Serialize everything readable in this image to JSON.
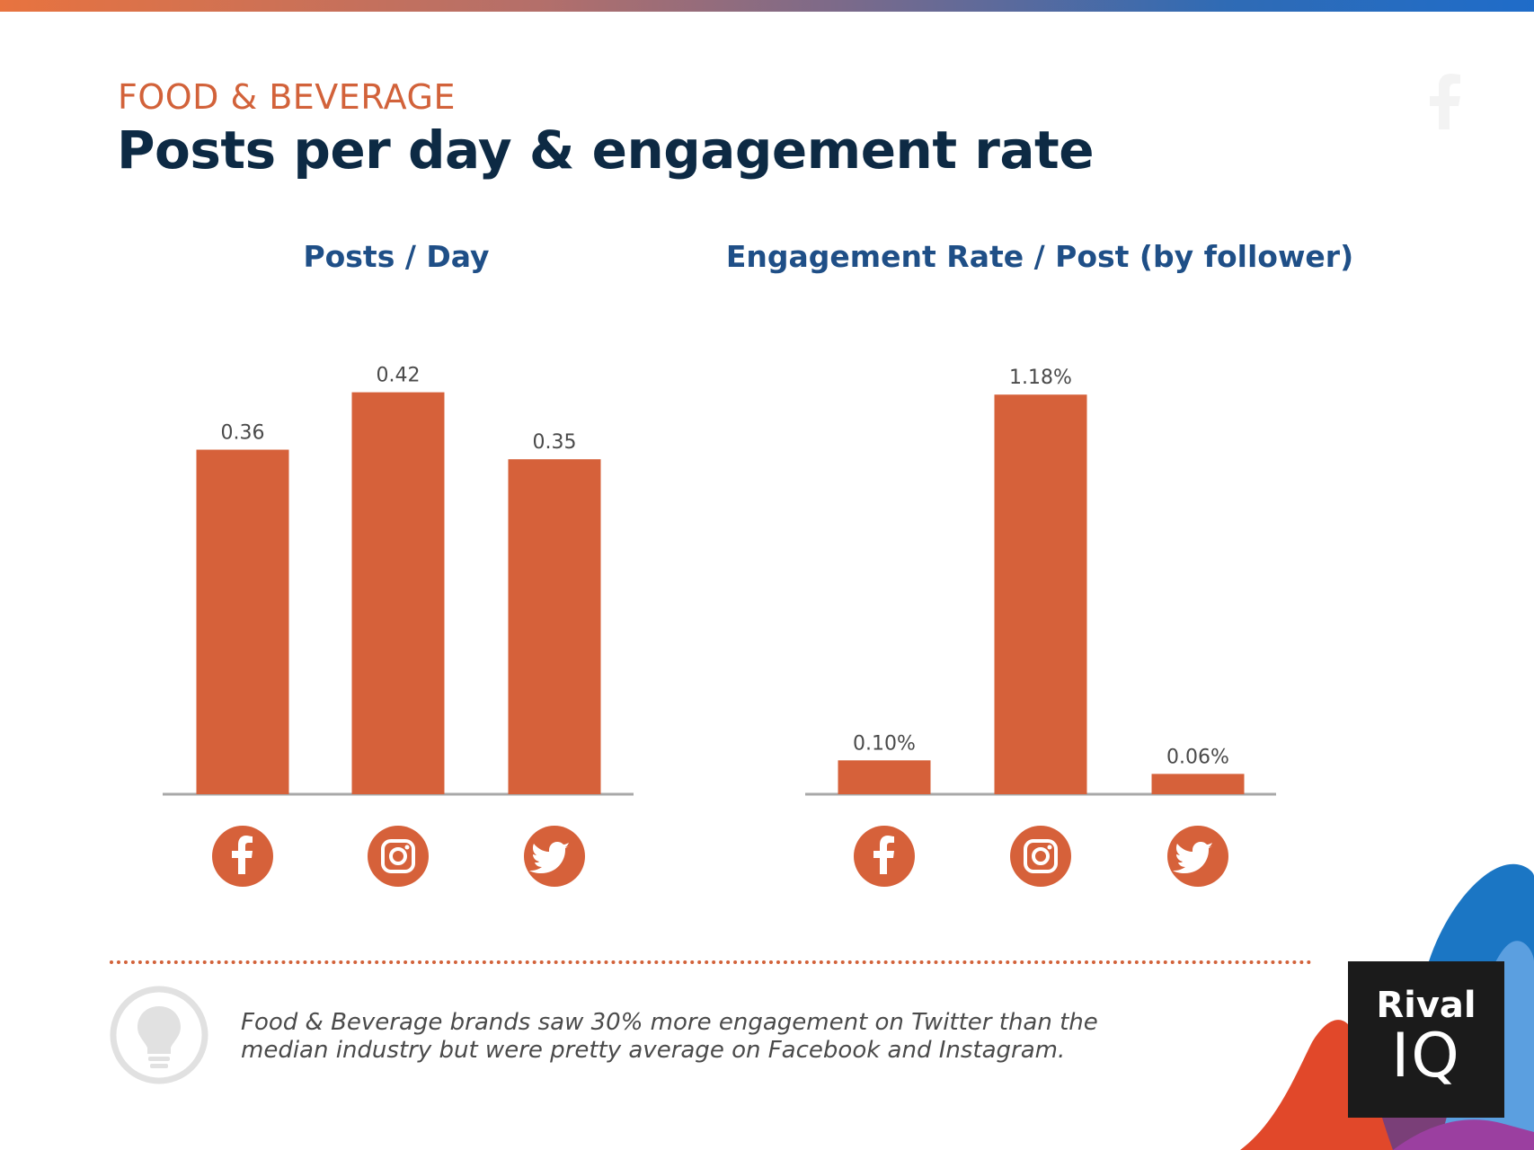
{
  "header": {
    "category": "FOOD & BEVERAGE",
    "title": "Posts per day & engagement rate"
  },
  "colors": {
    "bar": "#d6613a",
    "icon": "#d6613a",
    "title": "#0d2a44",
    "chart_title": "#1f4f87",
    "eyebrow": "#d2623a",
    "baseline": "#a8a8a8"
  },
  "chart_data": [
    {
      "type": "bar",
      "title": "Posts / Day",
      "categories": [
        "facebook-icon",
        "instagram-icon",
        "twitter-icon"
      ],
      "values": [
        0.36,
        0.42,
        0.35
      ],
      "value_labels": [
        "0.36",
        "0.42",
        "0.35"
      ],
      "ylim": [
        0,
        0.46
      ],
      "grid": false
    },
    {
      "type": "bar",
      "title": "Engagement Rate / Post (by follower)",
      "categories": [
        "facebook-icon",
        "instagram-icon",
        "twitter-icon"
      ],
      "values": [
        0.1,
        1.18,
        0.06
      ],
      "value_labels": [
        "0.10%",
        "1.18%",
        "0.06%"
      ],
      "ylim": [
        0,
        1.3
      ],
      "grid": false
    }
  ],
  "insight": {
    "icon": "lightbulb-icon",
    "text": "Food & Beverage brands saw 30% more engagement on Twitter than the median industry but were pretty average on Facebook and Instagram."
  },
  "logo": {
    "line1": "Rival",
    "line2": "IQ"
  }
}
